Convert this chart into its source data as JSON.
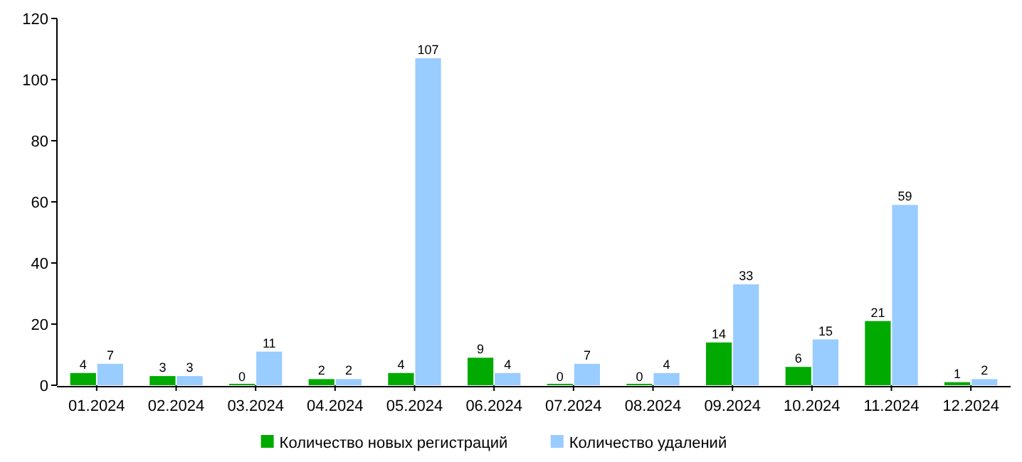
{
  "chart_data": {
    "type": "bar",
    "categories": [
      "01.2024",
      "02.2024",
      "03.2024",
      "04.2024",
      "05.2024",
      "06.2024",
      "07.2024",
      "08.2024",
      "09.2024",
      "10.2024",
      "11.2024",
      "12.2024"
    ],
    "series": [
      {
        "name": "Количество новых регистраций",
        "color": "#00aa00",
        "values": [
          4,
          3,
          0,
          2,
          4,
          9,
          0,
          0,
          14,
          6,
          21,
          1
        ]
      },
      {
        "name": "Количество удалений",
        "color": "#99ccff",
        "values": [
          7,
          3,
          11,
          2,
          107,
          4,
          7,
          4,
          33,
          15,
          59,
          2
        ]
      }
    ],
    "ylim": [
      0,
      120
    ],
    "yticks": [
      0,
      20,
      40,
      60,
      80,
      100,
      120
    ],
    "grid": false,
    "legend": "bottom",
    "data_labels": true
  }
}
